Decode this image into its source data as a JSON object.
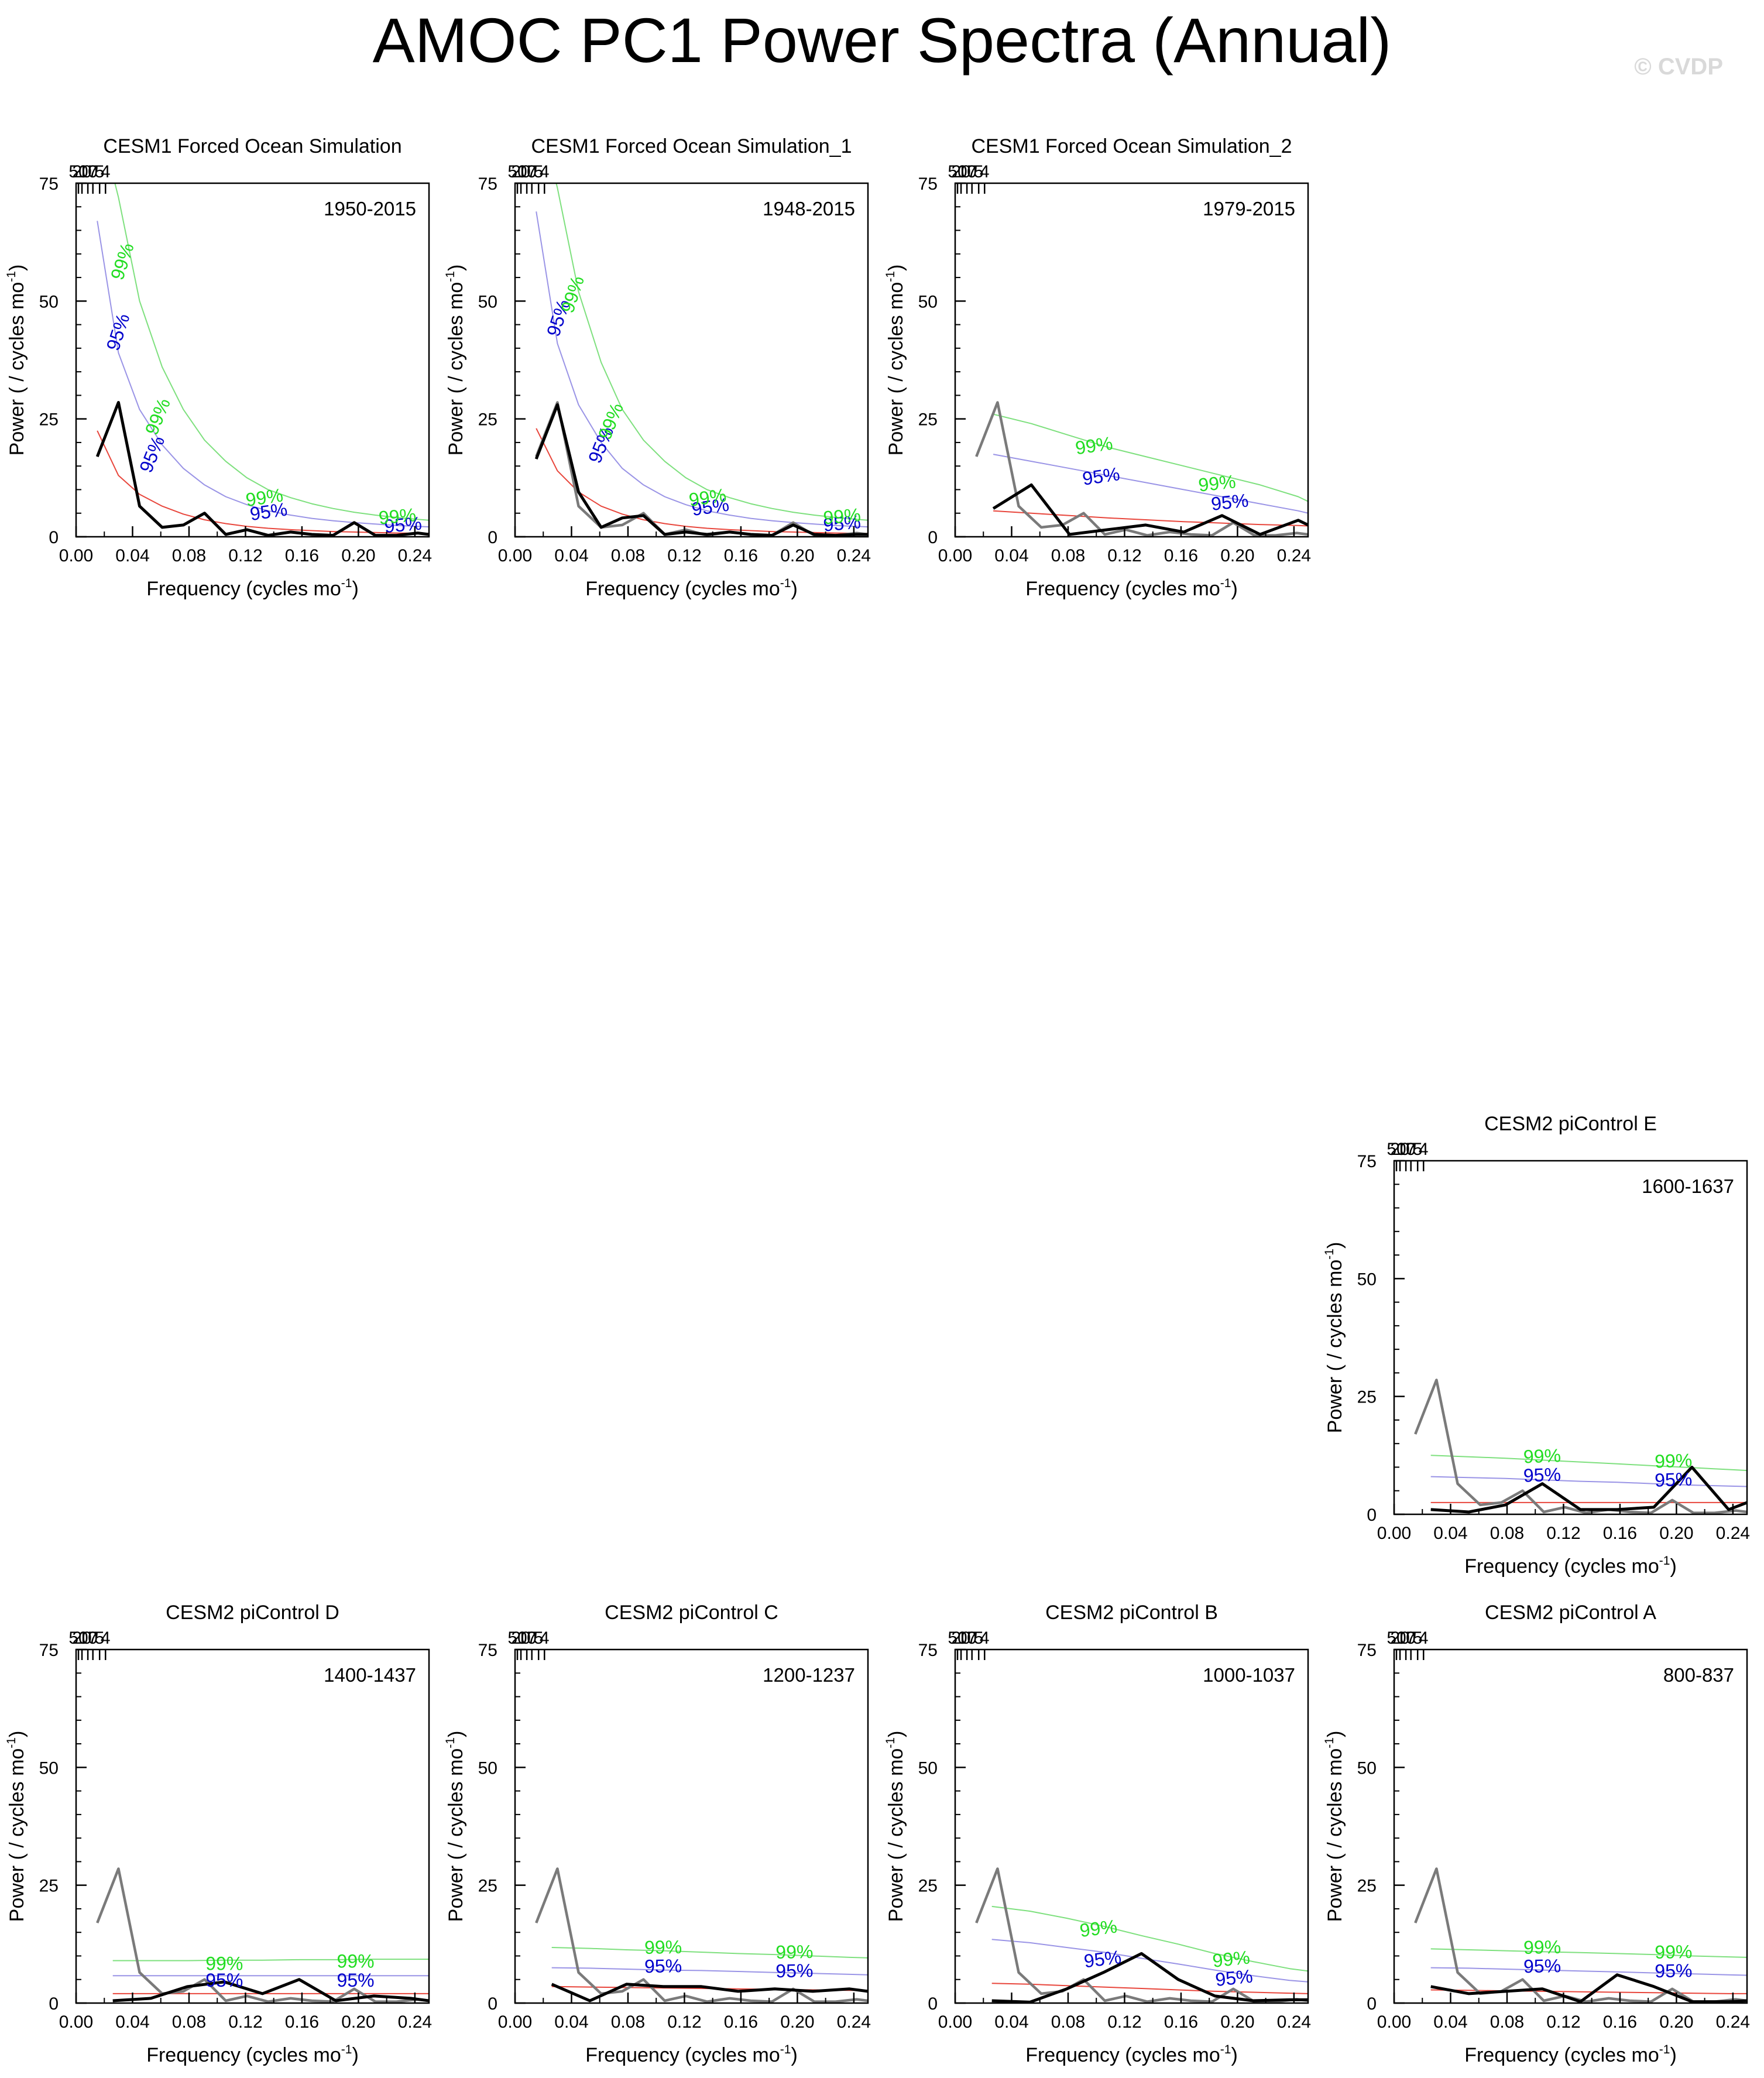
{
  "title": "AMOC PC1 Power Spectra (Annual)",
  "watermark": "© CVDP",
  "colors": {
    "spectrum": "#000000",
    "reference": "#7a7a7a",
    "red_noise": "#e8463c",
    "ci95": "#9a94e6",
    "ci99": "#7ee07e",
    "label95": "#0000cc",
    "label99": "#22dd22"
  },
  "axis_text": {
    "xlabel": "Frequency (cycles mo",
    "ylabel": "Power ( / cycles mo",
    "superscript": "-1",
    "close": ")"
  },
  "ci_labels": {
    "p95": "95%",
    "p99": "99%"
  },
  "chart_data": [
    {
      "type": "line",
      "title": "CESM1 Forced Ocean Simulation",
      "period": "1950-2015",
      "xlim": [
        0,
        0.25
      ],
      "ylim": [
        0,
        75
      ],
      "xticks": [
        0.0,
        0.04,
        0.08,
        0.12,
        0.16,
        0.2,
        0.24
      ],
      "xtick_labels": [
        "0.00",
        "0.04",
        "0.08",
        "0.12",
        "0.16",
        "0.20",
        "0.24"
      ],
      "yticks": [
        0,
        25,
        50,
        75
      ],
      "top_ticks": [
        50,
        20,
        10,
        7,
        5,
        4
      ],
      "x": [
        0.015,
        0.03,
        0.045,
        0.061,
        0.076,
        0.091,
        0.106,
        0.121,
        0.136,
        0.152,
        0.167,
        0.182,
        0.197,
        0.212,
        0.227,
        0.242,
        0.25
      ],
      "spectrum": [
        17,
        28.5,
        6.5,
        2,
        2.5,
        5,
        0.5,
        1.5,
        0.3,
        1,
        0.5,
        0.3,
        3,
        0.3,
        0.3,
        0.8,
        0.5
      ],
      "reference": null,
      "red_noise": [
        22.5,
        13,
        9,
        6.5,
        4.8,
        3.6,
        2.8,
        2.2,
        1.8,
        1.5,
        1.3,
        1.1,
        1.0,
        0.9,
        0.8,
        0.75,
        0.7
      ],
      "ci95": [
        67,
        39,
        27,
        19.5,
        14.5,
        11,
        8.5,
        6.8,
        5.5,
        4.6,
        3.9,
        3.4,
        3.0,
        2.7,
        2.4,
        2.2,
        2.1
      ],
      "ci99": [
        90,
        72,
        50,
        36,
        27,
        20.5,
        16,
        12.5,
        10,
        8.3,
        7,
        6,
        5.2,
        4.6,
        4.1,
        3.7,
        3.5
      ],
      "ci_label_pos": [
        [
          0.034,
          43,
          0.037,
          58
        ],
        [
          0.058,
          17,
          0.062,
          25
        ],
        [
          0.137,
          4,
          0.134,
          7
        ],
        [
          0.232,
          1.2,
          0.228,
          3
        ]
      ],
      "ci_label_rot": [
        -72,
        -68,
        -8,
        -5
      ]
    },
    {
      "type": "line",
      "title": "CESM1 Forced Ocean Simulation_1",
      "period": "1948-2015",
      "xlim": [
        0,
        0.25
      ],
      "ylim": [
        0,
        75
      ],
      "xticks": [
        0.0,
        0.04,
        0.08,
        0.12,
        0.16,
        0.2,
        0.24
      ],
      "xtick_labels": [
        "0.00",
        "0.04",
        "0.08",
        "0.12",
        "0.16",
        "0.20",
        "0.24"
      ],
      "yticks": [
        0,
        25,
        50,
        75
      ],
      "top_ticks": [
        50,
        20,
        10,
        7,
        5,
        4
      ],
      "x": [
        0.015,
        0.03,
        0.045,
        0.061,
        0.076,
        0.091,
        0.106,
        0.121,
        0.136,
        0.152,
        0.167,
        0.182,
        0.197,
        0.212,
        0.227,
        0.242,
        0.25
      ],
      "spectrum": [
        16.5,
        28,
        9.5,
        2,
        4,
        4.5,
        0.5,
        1,
        0.5,
        1,
        0.5,
        0.3,
        2.5,
        0.5,
        0.3,
        0.5,
        0.5
      ],
      "reference": [
        17,
        28.5,
        6.5,
        2,
        2.5,
        5,
        0.5,
        1.5,
        0.3,
        1,
        0.5,
        0.3,
        3,
        0.3,
        0.3,
        0.8,
        0.5
      ],
      "red_noise": [
        23,
        14,
        9.5,
        6.5,
        4.8,
        3.6,
        2.8,
        2.2,
        1.8,
        1.5,
        1.3,
        1.1,
        1.0,
        0.9,
        0.8,
        0.75,
        0.7
      ],
      "ci95": [
        69,
        41,
        28,
        20,
        14.5,
        11,
        8.5,
        6.8,
        5.5,
        4.6,
        3.9,
        3.4,
        3.0,
        2.7,
        2.4,
        2.2,
        2.1
      ],
      "ci99": [
        92,
        74,
        52,
        37,
        27,
        20.5,
        16,
        12.5,
        10,
        8.3,
        7,
        6,
        5.2,
        4.6,
        4.1,
        3.7,
        3.5
      ],
      "ci_label_pos": [
        [
          0.035,
          46,
          0.045,
          51
        ],
        [
          0.065,
          19,
          0.072,
          24
        ],
        [
          0.139,
          5,
          0.137,
          7
        ],
        [
          0.232,
          1.5,
          0.232,
          3
        ]
      ],
      "ci_label_rot": [
        -72,
        -68,
        -8,
        -5
      ]
    },
    {
      "type": "line",
      "title": "CESM1 Forced Ocean Simulation_2",
      "period": "1979-2015",
      "xlim": [
        0,
        0.25
      ],
      "ylim": [
        0,
        75
      ],
      "xticks": [
        0.0,
        0.04,
        0.08,
        0.12,
        0.16,
        0.2,
        0.24
      ],
      "xtick_labels": [
        "0.00",
        "0.04",
        "0.08",
        "0.12",
        "0.16",
        "0.20",
        "0.24"
      ],
      "yticks": [
        0,
        25,
        50,
        75
      ],
      "top_ticks": [
        50,
        20,
        10,
        7,
        5,
        4
      ],
      "x": [
        0.027,
        0.054,
        0.081,
        0.108,
        0.135,
        0.162,
        0.189,
        0.216,
        0.243,
        0.25
      ],
      "spectrum": [
        6,
        11,
        0.5,
        1.5,
        2.5,
        1,
        4.5,
        0.5,
        3.5,
        2.5
      ],
      "reference": [
        17,
        28.5,
        6.5,
        2,
        2.5,
        5,
        0.5,
        1.5,
        0.3,
        1,
        0.5,
        0.3,
        3,
        0.3,
        0.3,
        0.8,
        0.5
      ],
      "reference_x": [
        0.015,
        0.03,
        0.045,
        0.061,
        0.076,
        0.091,
        0.106,
        0.121,
        0.136,
        0.152,
        0.167,
        0.182,
        0.197,
        0.212,
        0.227,
        0.242,
        0.25
      ],
      "red_noise": [
        5.5,
        5,
        4.5,
        4,
        3.6,
        3.2,
        2.9,
        2.6,
        2.4,
        2.3
      ],
      "ci95": [
        17.5,
        16,
        14.5,
        13,
        11.5,
        10,
        8.5,
        7,
        5.5,
        5
      ],
      "ci99": [
        26,
        24,
        21.5,
        19,
        17,
        15,
        13,
        11,
        8.5,
        7.5
      ],
      "ci_label_pos": [
        [
          0.104,
          11.5,
          0.099,
          18
        ],
        [
          0.195,
          6,
          0.186,
          10
        ]
      ],
      "ci_label_rot": [
        -8,
        -6
      ]
    },
    {
      "type": "line",
      "title": "CESM2 piControl E",
      "period": "1600-1637",
      "xlim": [
        0,
        0.25
      ],
      "ylim": [
        0,
        75
      ],
      "xticks": [
        0.0,
        0.04,
        0.08,
        0.12,
        0.16,
        0.2,
        0.24
      ],
      "xtick_labels": [
        "0.00",
        "0.04",
        "0.08",
        "0.12",
        "0.16",
        "0.20",
        "0.24"
      ],
      "yticks": [
        0,
        25,
        50,
        75
      ],
      "top_ticks": [
        50,
        20,
        10,
        7,
        5,
        4
      ],
      "x": [
        0.026,
        0.053,
        0.079,
        0.105,
        0.132,
        0.158,
        0.184,
        0.211,
        0.237,
        0.25
      ],
      "spectrum": [
        1,
        0.5,
        2,
        6.5,
        1,
        1,
        1.5,
        10,
        1,
        2.5
      ],
      "reference": [
        17,
        28.5,
        6.5,
        2,
        2.5,
        5,
        0.5,
        1.5,
        0.3,
        1,
        0.5,
        0.3,
        3,
        0.3,
        0.3,
        0.8,
        0.5
      ],
      "reference_x": [
        0.015,
        0.03,
        0.045,
        0.061,
        0.076,
        0.091,
        0.106,
        0.121,
        0.136,
        0.152,
        0.167,
        0.182,
        0.197,
        0.212,
        0.227,
        0.242,
        0.25
      ],
      "red_noise": [
        2.5,
        2.5,
        2.5,
        2.5,
        2.5,
        2.5,
        2.5,
        2.5,
        2.5,
        2.5
      ],
      "ci95": [
        8,
        7.8,
        7.6,
        7.3,
        7,
        6.8,
        6.5,
        6.2,
        6,
        5.9
      ],
      "ci99": [
        12.5,
        12.2,
        11.9,
        11.5,
        11.1,
        10.7,
        10.3,
        9.9,
        9.5,
        9.3
      ],
      "ci_label_pos": [
        [
          0.105,
          7,
          0.105,
          11
        ],
        [
          0.198,
          6,
          0.198,
          10
        ]
      ],
      "ci_label_rot": [
        -2,
        -2
      ]
    },
    {
      "type": "line",
      "title": "CESM2 piControl D",
      "period": "1400-1437",
      "xlim": [
        0,
        0.25
      ],
      "ylim": [
        0,
        75
      ],
      "xticks": [
        0.0,
        0.04,
        0.08,
        0.12,
        0.16,
        0.2,
        0.24
      ],
      "xtick_labels": [
        "0.00",
        "0.04",
        "0.08",
        "0.12",
        "0.16",
        "0.20",
        "0.24"
      ],
      "yticks": [
        0,
        25,
        50,
        75
      ],
      "top_ticks": [
        50,
        20,
        10,
        7,
        5,
        4
      ],
      "x": [
        0.026,
        0.053,
        0.079,
        0.105,
        0.132,
        0.158,
        0.184,
        0.211,
        0.237,
        0.25
      ],
      "spectrum": [
        0.5,
        1,
        3.5,
        4.5,
        2,
        5,
        0.5,
        1.5,
        1,
        0.5
      ],
      "reference": [
        17,
        28.5,
        6.5,
        2,
        2.5,
        5,
        0.5,
        1.5,
        0.3,
        1,
        0.5,
        0.3,
        3,
        0.3,
        0.3,
        0.8,
        0.5
      ],
      "reference_x": [
        0.015,
        0.03,
        0.045,
        0.061,
        0.076,
        0.091,
        0.106,
        0.121,
        0.136,
        0.152,
        0.167,
        0.182,
        0.197,
        0.212,
        0.227,
        0.242,
        0.25
      ],
      "red_noise": [
        2,
        2,
        2,
        2,
        2,
        2,
        2,
        2,
        2,
        2
      ],
      "ci95": [
        5.8,
        5.8,
        5.8,
        5.8,
        5.8,
        5.8,
        5.8,
        5.8,
        5.8,
        5.8
      ],
      "ci99": [
        9,
        9,
        9,
        9.1,
        9.1,
        9.2,
        9.2,
        9.3,
        9.3,
        9.3
      ],
      "ci_label_pos": [
        [
          0.105,
          3.5,
          0.105,
          7
        ],
        [
          0.198,
          3.5,
          0.198,
          7.5
        ]
      ],
      "ci_label_rot": [
        0,
        0
      ]
    },
    {
      "type": "line",
      "title": "CESM2 piControl C",
      "period": "1200-1237",
      "xlim": [
        0,
        0.25
      ],
      "ylim": [
        0,
        75
      ],
      "xticks": [
        0.0,
        0.04,
        0.08,
        0.12,
        0.16,
        0.2,
        0.24
      ],
      "xtick_labels": [
        "0.00",
        "0.04",
        "0.08",
        "0.12",
        "0.16",
        "0.20",
        "0.24"
      ],
      "yticks": [
        0,
        25,
        50,
        75
      ],
      "top_ticks": [
        50,
        20,
        10,
        7,
        5,
        4
      ],
      "x": [
        0.026,
        0.053,
        0.079,
        0.105,
        0.132,
        0.158,
        0.184,
        0.211,
        0.237,
        0.25
      ],
      "spectrum": [
        4,
        0.5,
        4,
        3.5,
        3.5,
        2.5,
        3,
        2.5,
        3,
        2.5
      ],
      "reference": [
        17,
        28.5,
        6.5,
        2,
        2.5,
        5,
        0.5,
        1.5,
        0.3,
        1,
        0.5,
        0.3,
        3,
        0.3,
        0.3,
        0.8,
        0.5
      ],
      "reference_x": [
        0.015,
        0.03,
        0.045,
        0.061,
        0.076,
        0.091,
        0.106,
        0.121,
        0.136,
        0.152,
        0.167,
        0.182,
        0.197,
        0.212,
        0.227,
        0.242,
        0.25
      ],
      "red_noise": [
        3.5,
        3.4,
        3.3,
        3.2,
        3.1,
        3.0,
        2.9,
        2.8,
        2.7,
        2.7
      ],
      "ci95": [
        7.5,
        7.4,
        7.2,
        7.0,
        6.9,
        6.7,
        6.5,
        6.3,
        6.1,
        6.0
      ],
      "ci99": [
        11.8,
        11.6,
        11.3,
        11.1,
        10.8,
        10.5,
        10.3,
        10.0,
        9.7,
        9.6
      ],
      "ci_label_pos": [
        [
          0.105,
          6.5,
          0.105,
          10.5
        ],
        [
          0.198,
          5.5,
          0.198,
          9.5
        ]
      ],
      "ci_label_rot": [
        -1,
        -1
      ]
    },
    {
      "type": "line",
      "title": "CESM2 piControl B",
      "period": "1000-1037",
      "xlim": [
        0,
        0.25
      ],
      "ylim": [
        0,
        75
      ],
      "xticks": [
        0.0,
        0.04,
        0.08,
        0.12,
        0.16,
        0.2,
        0.24
      ],
      "xtick_labels": [
        "0.00",
        "0.04",
        "0.08",
        "0.12",
        "0.16",
        "0.20",
        "0.24"
      ],
      "yticks": [
        0,
        25,
        50,
        75
      ],
      "top_ticks": [
        50,
        20,
        10,
        7,
        5,
        4
      ],
      "x": [
        0.026,
        0.053,
        0.079,
        0.105,
        0.132,
        0.158,
        0.184,
        0.211,
        0.237,
        0.25
      ],
      "spectrum": [
        0.5,
        0.2,
        3,
        6.5,
        10.5,
        5,
        1.5,
        0.5,
        0.7,
        0.7
      ],
      "reference": [
        17,
        28.5,
        6.5,
        2,
        2.5,
        5,
        0.5,
        1.5,
        0.3,
        1,
        0.5,
        0.3,
        3,
        0.3,
        0.3,
        0.8,
        0.5
      ],
      "reference_x": [
        0.015,
        0.03,
        0.045,
        0.061,
        0.076,
        0.091,
        0.106,
        0.121,
        0.136,
        0.152,
        0.167,
        0.182,
        0.197,
        0.212,
        0.227,
        0.242,
        0.25
      ],
      "red_noise": [
        4.2,
        4,
        3.7,
        3.4,
        3.1,
        2.8,
        2.5,
        2.3,
        2.1,
        2.0
      ],
      "ci95": [
        13.5,
        12.8,
        11.8,
        10.8,
        9.5,
        8.3,
        7,
        5.8,
        4.8,
        4.5
      ],
      "ci99": [
        20.5,
        19.5,
        18,
        16.3,
        14.3,
        12.5,
        10.5,
        8.8,
        7.3,
        6.8
      ],
      "ci_label_pos": [
        [
          0.105,
          8,
          0.102,
          14.5
        ],
        [
          0.198,
          4,
          0.196,
          8
        ]
      ],
      "ci_label_rot": [
        -7,
        -6
      ]
    },
    {
      "type": "line",
      "title": "CESM2 piControl A",
      "period": "800-837",
      "xlim": [
        0,
        0.25
      ],
      "ylim": [
        0,
        75
      ],
      "xticks": [
        0.0,
        0.04,
        0.08,
        0.12,
        0.16,
        0.2,
        0.24
      ],
      "xtick_labels": [
        "0.00",
        "0.04",
        "0.08",
        "0.12",
        "0.16",
        "0.20",
        "0.24"
      ],
      "yticks": [
        0,
        25,
        50,
        75
      ],
      "top_ticks": [
        50,
        20,
        10,
        7,
        5,
        4
      ],
      "x": [
        0.026,
        0.053,
        0.079,
        0.105,
        0.132,
        0.158,
        0.184,
        0.211,
        0.237,
        0.25
      ],
      "spectrum": [
        3.5,
        2,
        2.5,
        3,
        0.3,
        6,
        3.5,
        0.3,
        0.3,
        0.5
      ],
      "reference": [
        17,
        28.5,
        6.5,
        2,
        2.5,
        5,
        0.5,
        1.5,
        0.3,
        1,
        0.5,
        0.3,
        3,
        0.3,
        0.3,
        0.8,
        0.5
      ],
      "reference_x": [
        0.015,
        0.03,
        0.045,
        0.061,
        0.076,
        0.091,
        0.106,
        0.121,
        0.136,
        0.152,
        0.167,
        0.182,
        0.197,
        0.212,
        0.227,
        0.242,
        0.25
      ],
      "red_noise": [
        2.8,
        2.7,
        2.6,
        2.5,
        2.4,
        2.3,
        2.2,
        2.1,
        2.0,
        2.0
      ],
      "ci95": [
        7.5,
        7.4,
        7.2,
        7.0,
        6.8,
        6.6,
        6.4,
        6.2,
        6.0,
        5.9
      ],
      "ci99": [
        11.5,
        11.3,
        11.1,
        10.9,
        10.7,
        10.5,
        10.3,
        10.0,
        9.8,
        9.7
      ],
      "ci_label_pos": [
        [
          0.105,
          6.5,
          0.105,
          10.5
        ],
        [
          0.198,
          5.5,
          0.198,
          9.5
        ]
      ],
      "ci_label_rot": [
        -1,
        -1
      ]
    }
  ]
}
